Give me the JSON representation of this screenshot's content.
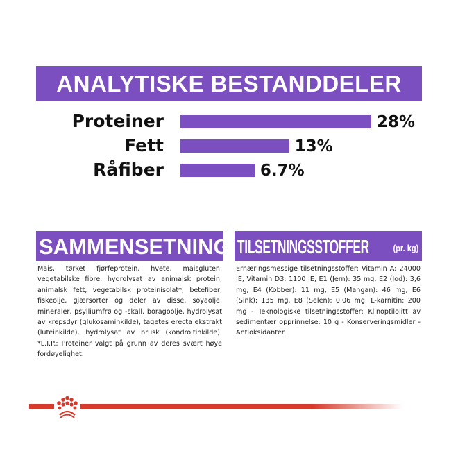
{
  "banner": {
    "title": "ANALYTISKE BESTANDDELER"
  },
  "analysis": [
    {
      "label": "Proteiner",
      "value": 28,
      "display": "28%"
    },
    {
      "label": "Fett",
      "value": 13,
      "display": "13%"
    },
    {
      "label": "Råfiber",
      "value": 6.7,
      "display": "6.7%"
    }
  ],
  "composition": {
    "title": "SAMMENSETNING",
    "text": "Mais, tørket fjørfeprotein, hvete, maisgluten, vegetabilske fibre, hydrolysat av animalsk protein, animalsk fett, vegetabilsk proteinisolat*, betefiber, fiskeolje, gjærsorter og deler av disse, soyaolje, mineraler, psylliumfrø og -skall, boragoolje, hydrolysat av krepsdyr (glukosaminkilde), tagetes erecta ekstrakt (luteinkilde), hydrolysat av brusk (kondroitinkilde). *L.I.P.: Proteiner valgt på grunn av deres svært høye fordøyelighet."
  },
  "additives": {
    "title": "TILSETNINGSSTOFFER",
    "unit": "(pr. kg)",
    "text": "Ernæringsmessige tilsetningsstoffer: Vitamin A: 24000 IE, Vitamin D3: 1100 IE, E1 (Jern): 35 mg, E2 (Jod): 3,6 mg, E4 (Kobber): 11 mg, E5 (Mangan): 46 mg, E6 (Sink): 135 mg, E8 (Selen): 0,06 mg, L-karnitin: 200 mg - Teknologiske tilsetningsstoffer: Klinoptilolitt av sedimentær opprinnelse: 10 g - Konserveringsmidler - Antioksidanter."
  },
  "colors": {
    "accent": "#7b4fbf",
    "brand_red": "#d63a2a"
  },
  "logo": {
    "icon": "royal-canin-crown-icon"
  }
}
